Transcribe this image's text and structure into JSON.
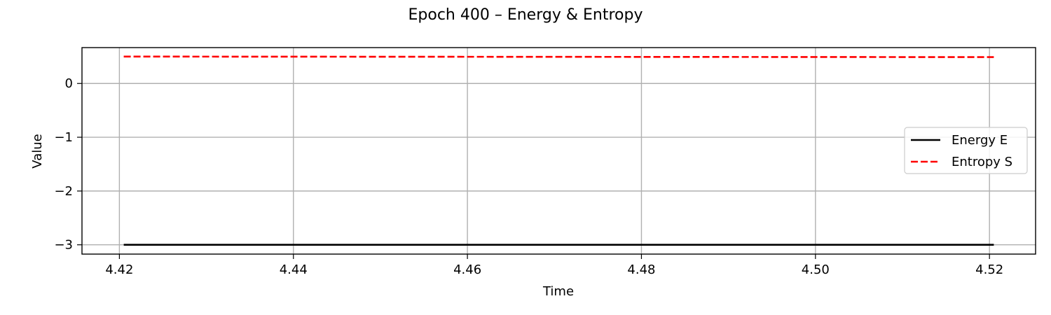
{
  "chart_data": {
    "type": "line",
    "title": "Epoch 400 – Energy & Entropy",
    "xlabel": "Time",
    "ylabel": "Value",
    "xlim": [
      4.4157,
      4.5253
    ],
    "ylim": [
      -3.173,
      0.667
    ],
    "x_ticks": [
      {
        "value": 4.42,
        "label": "4.42"
      },
      {
        "value": 4.44,
        "label": "4.44"
      },
      {
        "value": 4.46,
        "label": "4.46"
      },
      {
        "value": 4.48,
        "label": "4.48"
      },
      {
        "value": 4.5,
        "label": "4.50"
      },
      {
        "value": 4.52,
        "label": "4.52"
      }
    ],
    "y_ticks": [
      {
        "value": 0,
        "label": "0"
      },
      {
        "value": -1,
        "label": "−1"
      },
      {
        "value": -2,
        "label": "−2"
      },
      {
        "value": -3,
        "label": "−3"
      }
    ],
    "grid": true,
    "legend_position": "center-right",
    "series": [
      {
        "name": "Energy E",
        "color": "#000000",
        "style": "solid",
        "x": [
          4.4205,
          4.5205
        ],
        "y": [
          -3.0,
          -3.0
        ]
      },
      {
        "name": "Entropy S",
        "color": "#ff0000",
        "style": "dashed",
        "x": [
          4.4205,
          4.5205
        ],
        "y": [
          0.5,
          0.49
        ]
      }
    ]
  }
}
